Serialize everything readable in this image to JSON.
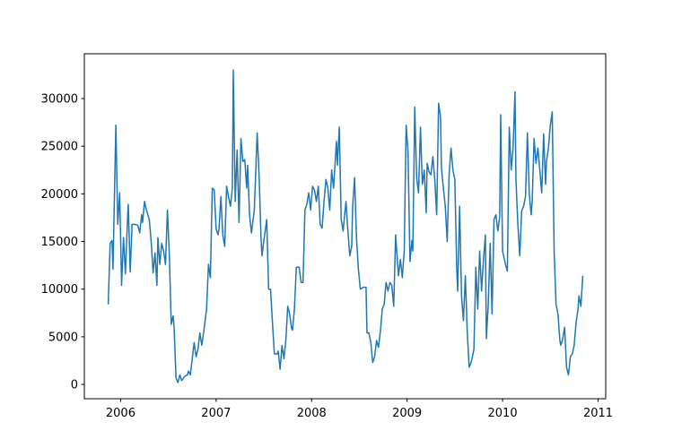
{
  "chart_data": {
    "type": "line",
    "color": "#1f77b4",
    "x": [
      2005.87,
      2005.89,
      2005.91,
      2005.92,
      2005.95,
      2005.97,
      2005.99,
      2006.01,
      2006.03,
      2006.05,
      2006.07,
      2006.08,
      2006.1,
      2006.12,
      2006.15,
      2006.18,
      2006.2,
      2006.22,
      2006.23,
      2006.25,
      2006.27,
      2006.3,
      2006.32,
      2006.34,
      2006.36,
      2006.38,
      2006.39,
      2006.41,
      2006.43,
      2006.45,
      2006.47,
      2006.49,
      2006.51,
      2006.53,
      2006.55,
      2006.56,
      2006.58,
      2006.6,
      2006.62,
      2006.64,
      2006.67,
      2006.7,
      2006.71,
      2006.73,
      2006.75,
      2006.77,
      2006.79,
      2006.81,
      2006.83,
      2006.85,
      2006.87,
      2006.9,
      2006.92,
      2006.94,
      2006.96,
      2006.98,
      2007.0,
      2007.02,
      2007.03,
      2007.05,
      2007.07,
      2007.09,
      2007.11,
      2007.13,
      2007.15,
      2007.17,
      2007.18,
      2007.2,
      2007.22,
      2007.24,
      2007.26,
      2007.28,
      2007.3,
      2007.32,
      2007.33,
      2007.35,
      2007.37,
      2007.4,
      2007.43,
      2007.45,
      2007.47,
      2007.48,
      2007.5,
      2007.53,
      2007.55,
      2007.57,
      2007.59,
      2007.61,
      2007.64,
      2007.65,
      2007.67,
      2007.69,
      2007.71,
      2007.73,
      2007.75,
      2007.77,
      2007.79,
      2007.8,
      2007.82,
      2007.84,
      2007.87,
      2007.89,
      2007.91,
      2007.93,
      2007.95,
      2007.97,
      2007.99,
      2008.01,
      2008.03,
      2008.05,
      2008.07,
      2008.09,
      2008.11,
      2008.13,
      2008.15,
      2008.17,
      2008.19,
      2008.21,
      2008.23,
      2008.26,
      2008.27,
      2008.29,
      2008.31,
      2008.33,
      2008.36,
      2008.38,
      2008.4,
      2008.42,
      2008.43,
      2008.45,
      2008.47,
      2008.49,
      2008.51,
      2008.54,
      2008.57,
      2008.58,
      2008.6,
      2008.62,
      2008.64,
      2008.66,
      2008.68,
      2008.7,
      2008.72,
      2008.74,
      2008.76,
      2008.78,
      2008.8,
      2008.82,
      2008.84,
      2008.86,
      2008.88,
      2008.89,
      2008.91,
      2008.93,
      2008.95,
      2008.97,
      2008.99,
      2009.01,
      2009.03,
      2009.05,
      2009.06,
      2009.08,
      2009.1,
      2009.12,
      2009.14,
      2009.16,
      2009.18,
      2009.2,
      2009.21,
      2009.23,
      2009.25,
      2009.27,
      2009.29,
      2009.31,
      2009.33,
      2009.35,
      2009.36,
      2009.38,
      2009.4,
      2009.42,
      2009.44,
      2009.46,
      2009.48,
      2009.5,
      2009.52,
      2009.53,
      2009.55,
      2009.57,
      2009.59,
      2009.61,
      2009.63,
      2009.65,
      2009.67,
      2009.68,
      2009.7,
      2009.72,
      2009.74,
      2009.76,
      2009.78,
      2009.8,
      2009.82,
      2009.83,
      2009.85,
      2009.87,
      2009.89,
      2009.91,
      2009.93,
      2009.95,
      2009.97,
      2009.98,
      2010.0,
      2010.03,
      2010.05,
      2010.07,
      2010.09,
      2010.11,
      2010.13,
      2010.14,
      2010.16,
      2010.18,
      2010.2,
      2010.22,
      2010.24,
      2010.26,
      2010.28,
      2010.3,
      2010.31,
      2010.33,
      2010.35,
      2010.37,
      2010.39,
      2010.41,
      2010.43,
      2010.45,
      2010.46,
      2010.48,
      2010.5,
      2010.52,
      2010.54,
      2010.56,
      2010.58,
      2010.6,
      2010.61,
      2010.63,
      2010.65,
      2010.67,
      2010.69,
      2010.71,
      2010.73,
      2010.75,
      2010.77,
      2010.79,
      2010.8,
      2010.82,
      2010.84
    ],
    "values": [
      8400,
      14800,
      15100,
      12100,
      27200,
      16800,
      20100,
      10400,
      15400,
      11600,
      16800,
      18900,
      11800,
      16800,
      16800,
      16700,
      15900,
      17800,
      17000,
      19200,
      18300,
      17300,
      15000,
      11700,
      13800,
      10400,
      15400,
      12600,
      14800,
      14000,
      12600,
      18300,
      13600,
      6300,
      7200,
      6000,
      650,
      200,
      1000,
      400,
      850,
      1000,
      1400,
      1000,
      2700,
      4400,
      2900,
      3700,
      5400,
      4100,
      5500,
      7900,
      12600,
      11200,
      20600,
      20400,
      16300,
      15700,
      16300,
      19700,
      15700,
      14500,
      20800,
      19700,
      18700,
      20600,
      33000,
      19200,
      24600,
      17000,
      25800,
      23400,
      23600,
      20600,
      23000,
      17800,
      15900,
      18300,
      26400,
      22000,
      15400,
      13500,
      15100,
      17300,
      10000,
      10000,
      6500,
      3200,
      3200,
      3500,
      1600,
      4100,
      2700,
      4600,
      8200,
      7400,
      5900,
      5700,
      7900,
      12300,
      12300,
      10700,
      10700,
      18300,
      18900,
      20100,
      18300,
      20800,
      20400,
      19200,
      20800,
      16800,
      16400,
      19200,
      21500,
      20600,
      18300,
      22500,
      20600,
      25500,
      23000,
      27000,
      17300,
      16100,
      19200,
      16100,
      13500,
      14500,
      18700,
      21700,
      15400,
      12100,
      10000,
      10200,
      10200,
      5400,
      5400,
      4400,
      2300,
      2900,
      4600,
      3900,
      5500,
      7900,
      8400,
      10700,
      9800,
      10700,
      10400,
      8200,
      15700,
      14200,
      11400,
      13100,
      11200,
      14000,
      27200,
      24400,
      12900,
      15100,
      14000,
      29100,
      21700,
      20100,
      27000,
      21000,
      22500,
      18000,
      23200,
      22300,
      22000,
      23900,
      21500,
      17800,
      29500,
      28100,
      22700,
      20600,
      18700,
      15000,
      22000,
      24800,
      22500,
      21500,
      12100,
      9800,
      18700,
      9300,
      6700,
      11400,
      5500,
      1800,
      2300,
      2700,
      3700,
      12300,
      7900,
      14000,
      9800,
      13100,
      15700,
      4800,
      8400,
      14800,
      7400,
      17300,
      17800,
      16100,
      17600,
      28300,
      14000,
      12600,
      11900,
      27000,
      22500,
      24800,
      30700,
      21500,
      16800,
      13500,
      18200,
      18700,
      19700,
      26400,
      19900,
      17800,
      19200,
      25800,
      23200,
      24800,
      22500,
      20100,
      26300,
      21000,
      23400,
      24800,
      27200,
      28600,
      14000,
      8400,
      7400,
      4600,
      4100,
      4800,
      6000,
      1800,
      1000,
      2900,
      3200,
      4100,
      6500,
      7900,
      9300,
      8200,
      11400
    ],
    "xlim": [
      2005.62,
      2011.08
    ],
    "xticks": [
      2006,
      2007,
      2008,
      2009,
      2010,
      2011
    ],
    "ylim": [
      -1500,
      34700
    ],
    "yticks": [
      0,
      5000,
      10000,
      15000,
      20000,
      25000,
      30000
    ]
  }
}
